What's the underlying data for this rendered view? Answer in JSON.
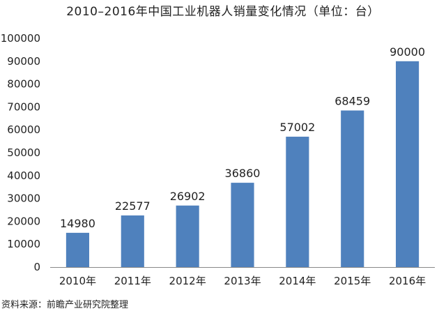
{
  "chart_data": {
    "type": "bar",
    "title": "2010–2016年中国工业机器人销量变化情况（单位：台）",
    "xlabel": "",
    "ylabel": "",
    "categories": [
      "2010年",
      "2011年",
      "2012年",
      "2013年",
      "2014年",
      "2015年",
      "2016年"
    ],
    "values": [
      14980,
      22577,
      26902,
      36860,
      57002,
      68459,
      90000
    ],
    "ylim": [
      0,
      100000
    ],
    "yticks": [
      "0",
      "10000",
      "20000",
      "30000",
      "40000",
      "50000",
      "60000",
      "70000",
      "80000",
      "90000",
      "100000"
    ],
    "bar_color": "#4f81bd",
    "grid": false,
    "data_labels": true,
    "source": "资料来源：前瞻产业研究院整理"
  }
}
